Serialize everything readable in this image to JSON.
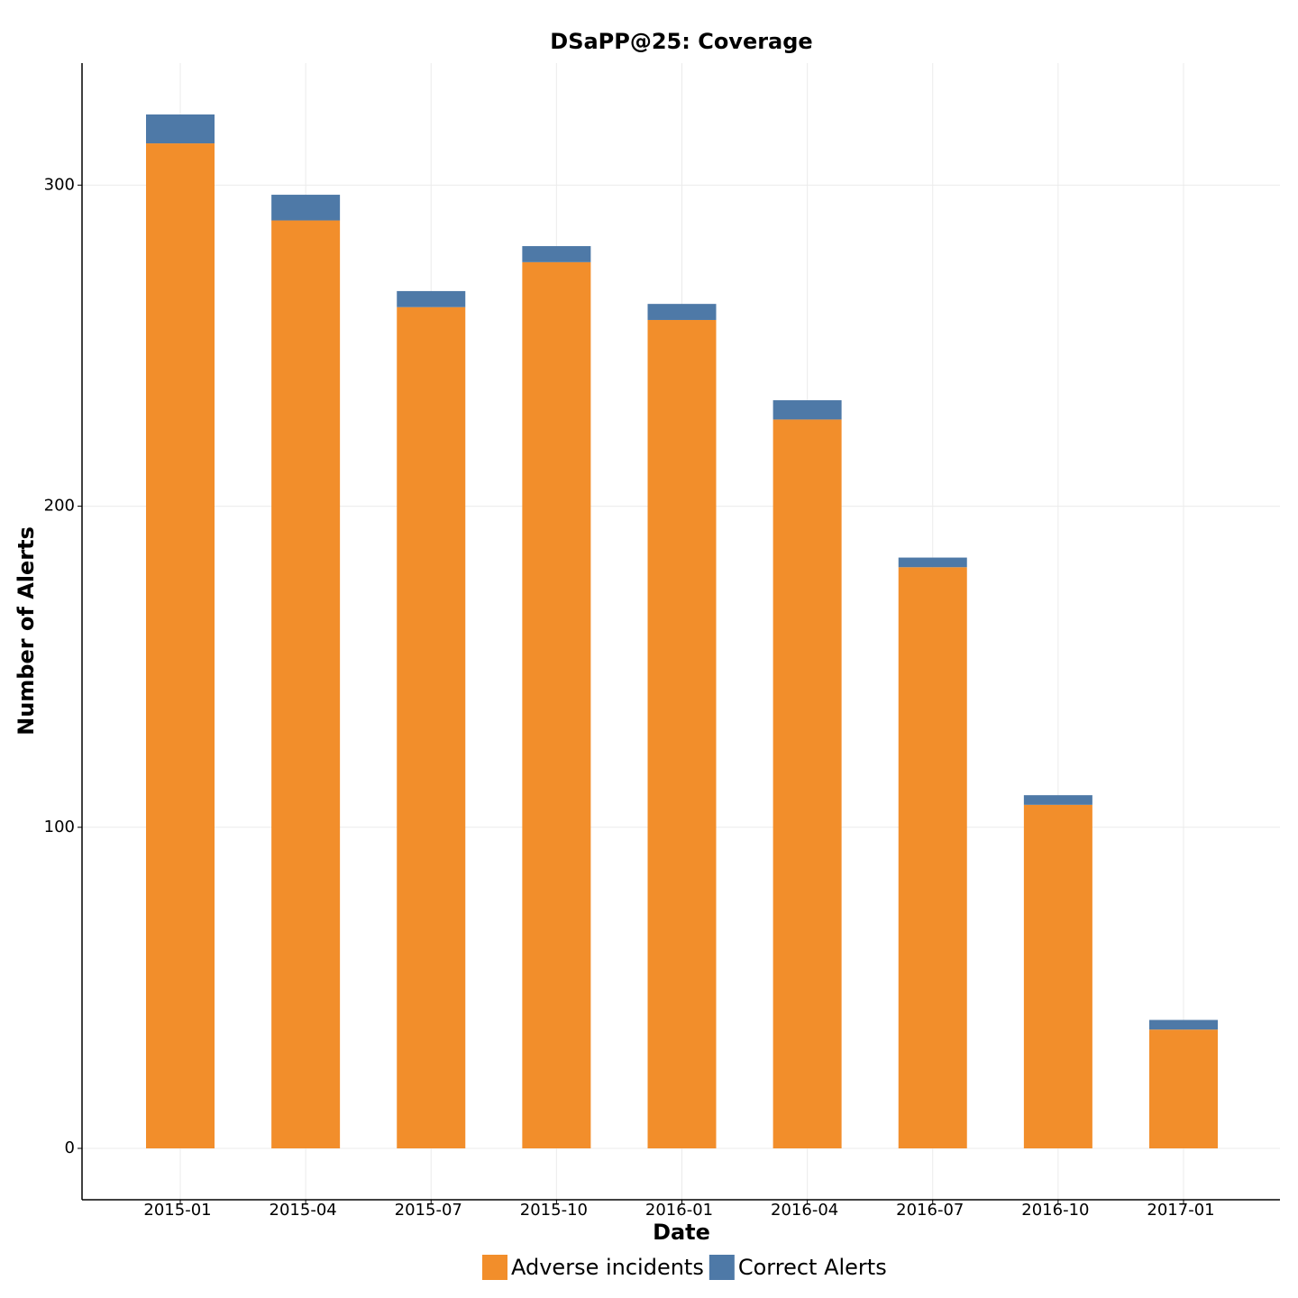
{
  "chart_data": {
    "type": "stacked_bar",
    "title": "DSaPP@25: Coverage",
    "x_label": "Date",
    "y_label": "Number of Alerts",
    "categories": [
      "2015-01",
      "2015-04",
      "2015-07",
      "2015-10",
      "2016-01",
      "2016-04",
      "2016-07",
      "2016-10",
      "2017-01"
    ],
    "series": [
      {
        "name": "Adverse incidents",
        "color": "#f28e2b",
        "values": [
          313,
          289,
          262,
          276,
          258,
          227,
          181,
          107,
          37
        ]
      },
      {
        "name": "Correct Alerts",
        "color": "#4e79a7",
        "values": [
          9,
          8,
          5,
          5,
          5,
          6,
          3,
          3,
          3
        ]
      }
    ],
    "ylim": [
      -16,
      338
    ],
    "yticks": [
      0,
      100,
      200,
      300
    ],
    "grid": true
  }
}
